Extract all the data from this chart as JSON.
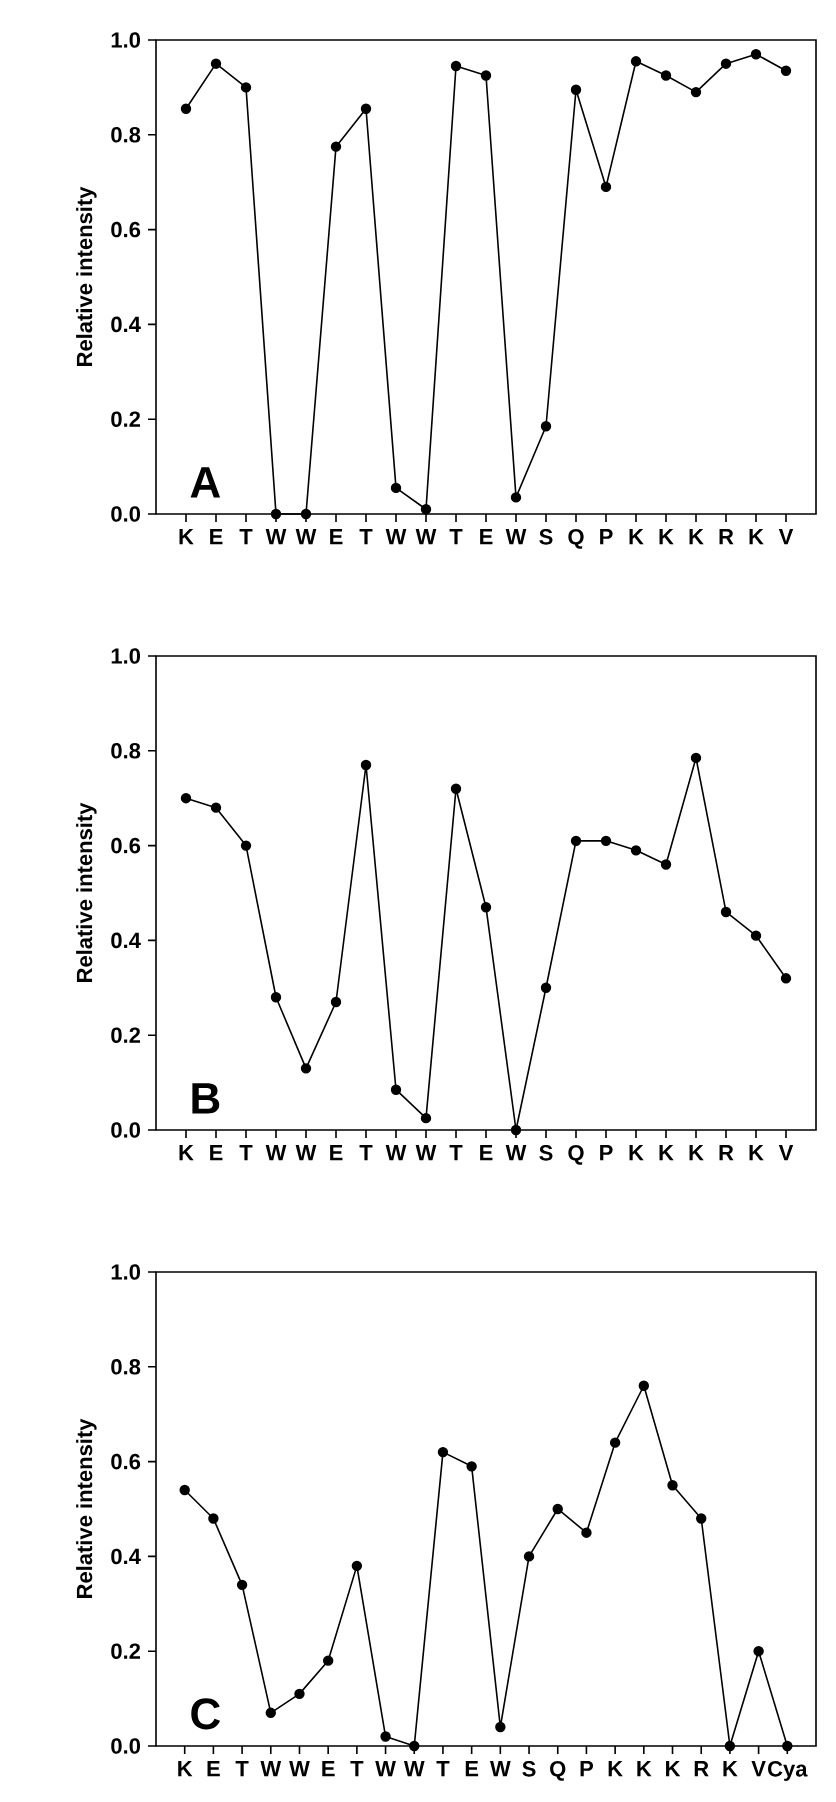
{
  "chart_data": [
    {
      "type": "line",
      "ylabel": "Relative intensity",
      "annotations": [
        "A"
      ],
      "marker": "circle",
      "categories": [
        "K",
        "E",
        "T",
        "W",
        "W",
        "E",
        "T",
        "W",
        "W",
        "T",
        "E",
        "W",
        "S",
        "Q",
        "P",
        "K",
        "K",
        "K",
        "R",
        "K",
        "V"
      ],
      "series": [
        {
          "color": "#000000",
          "values": [
            0.855,
            0.95,
            0.9,
            0.0,
            0.0,
            0.775,
            0.855,
            0.055,
            0.01,
            0.945,
            0.925,
            0.035,
            0.185,
            0.895,
            0.69,
            0.955,
            0.925,
            0.89,
            0.95,
            0.97,
            0.935
          ]
        }
      ],
      "ylim": [
        0,
        1
      ],
      "yticks": [
        {
          "value": 0,
          "label": "0.0"
        },
        {
          "value": 0.2,
          "label": "0.2"
        },
        {
          "value": 0.4,
          "label": "0.4"
        },
        {
          "value": 0.6,
          "label": "0.6"
        },
        {
          "value": 0.8,
          "label": "0.8"
        },
        {
          "value": 1,
          "label": "1.0"
        }
      ]
    },
    {
      "type": "line",
      "ylabel": "Relative intensity",
      "annotations": [
        "B"
      ],
      "marker": "circle",
      "categories": [
        "K",
        "E",
        "T",
        "W",
        "W",
        "E",
        "T",
        "W",
        "W",
        "T",
        "E",
        "W",
        "S",
        "Q",
        "P",
        "K",
        "K",
        "K",
        "R",
        "K",
        "V"
      ],
      "series": [
        {
          "color": "#000000",
          "values": [
            0.7,
            0.68,
            0.6,
            0.28,
            0.13,
            0.27,
            0.77,
            0.085,
            0.025,
            0.72,
            0.47,
            0.0,
            0.3,
            0.61,
            0.61,
            0.59,
            0.56,
            0.785,
            0.46,
            0.41,
            0.32
          ]
        }
      ],
      "ylim": [
        0,
        1
      ],
      "yticks": [
        {
          "value": 0,
          "label": "0.0"
        },
        {
          "value": 0.2,
          "label": "0.2"
        },
        {
          "value": 0.4,
          "label": "0.4"
        },
        {
          "value": 0.6,
          "label": "0.6"
        },
        {
          "value": 0.8,
          "label": "0.8"
        },
        {
          "value": 1,
          "label": "1.0"
        }
      ]
    },
    {
      "type": "line",
      "ylabel": "Relative intensity",
      "annotations": [
        "C"
      ],
      "marker": "circle",
      "categories": [
        "K",
        "E",
        "T",
        "W",
        "W",
        "E",
        "T",
        "W",
        "W",
        "T",
        "E",
        "W",
        "S",
        "Q",
        "P",
        "K",
        "K",
        "K",
        "R",
        "K",
        "V",
        "Cya"
      ],
      "series": [
        {
          "color": "#000000",
          "values": [
            0.54,
            0.48,
            0.34,
            0.07,
            0.11,
            0.18,
            0.38,
            0.02,
            0.0,
            0.62,
            0.59,
            0.04,
            0.4,
            0.5,
            0.45,
            0.64,
            0.76,
            0.55,
            0.48,
            0.0,
            0.2,
            0.0
          ]
        }
      ],
      "ylim": [
        0,
        1
      ],
      "yticks": [
        {
          "value": 0,
          "label": "0.0"
        },
        {
          "value": 0.2,
          "label": "0.2"
        },
        {
          "value": 0.4,
          "label": "0.4"
        },
        {
          "value": 0.6,
          "label": "0.6"
        },
        {
          "value": 0.8,
          "label": "0.8"
        },
        {
          "value": 1,
          "label": "1.0"
        }
      ]
    }
  ]
}
